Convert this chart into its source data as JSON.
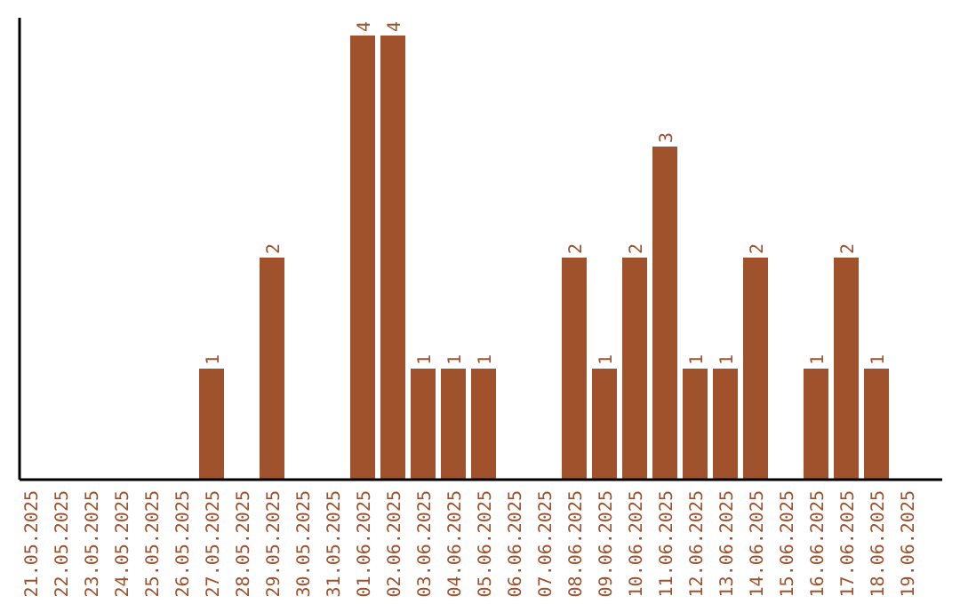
{
  "chart_data": {
    "type": "bar",
    "color": "#a0522d",
    "categories": [
      "21.05.2025",
      "22.05.2025",
      "23.05.2025",
      "24.05.2025",
      "25.05.2025",
      "26.05.2025",
      "27.05.2025",
      "28.05.2025",
      "29.05.2025",
      "30.05.2025",
      "31.05.2025",
      "01.06.2025",
      "02.06.2025",
      "03.06.2025",
      "04.06.2025",
      "05.06.2025",
      "06.06.2025",
      "07.06.2025",
      "08.06.2025",
      "09.06.2025",
      "10.06.2025",
      "11.06.2025",
      "12.06.2025",
      "13.06.2025",
      "14.06.2025",
      "15.06.2025",
      "16.06.2025",
      "17.06.2025",
      "18.06.2025",
      "19.06.2025"
    ],
    "values": [
      0,
      0,
      0,
      0,
      0,
      0,
      1,
      0,
      2,
      0,
      0,
      4,
      4,
      1,
      1,
      1,
      0,
      0,
      2,
      1,
      2,
      3,
      1,
      1,
      2,
      0,
      1,
      2,
      1,
      0
    ],
    "value_labels": [
      null,
      null,
      null,
      null,
      null,
      null,
      "1",
      null,
      "2",
      null,
      null,
      "4",
      "4",
      "1",
      "1",
      "1",
      null,
      null,
      "2",
      "1",
      "2",
      "3",
      "1",
      "1",
      "2",
      null,
      "1",
      "2",
      "1",
      null
    ],
    "tick_labels": "x",
    "grid": false
  }
}
